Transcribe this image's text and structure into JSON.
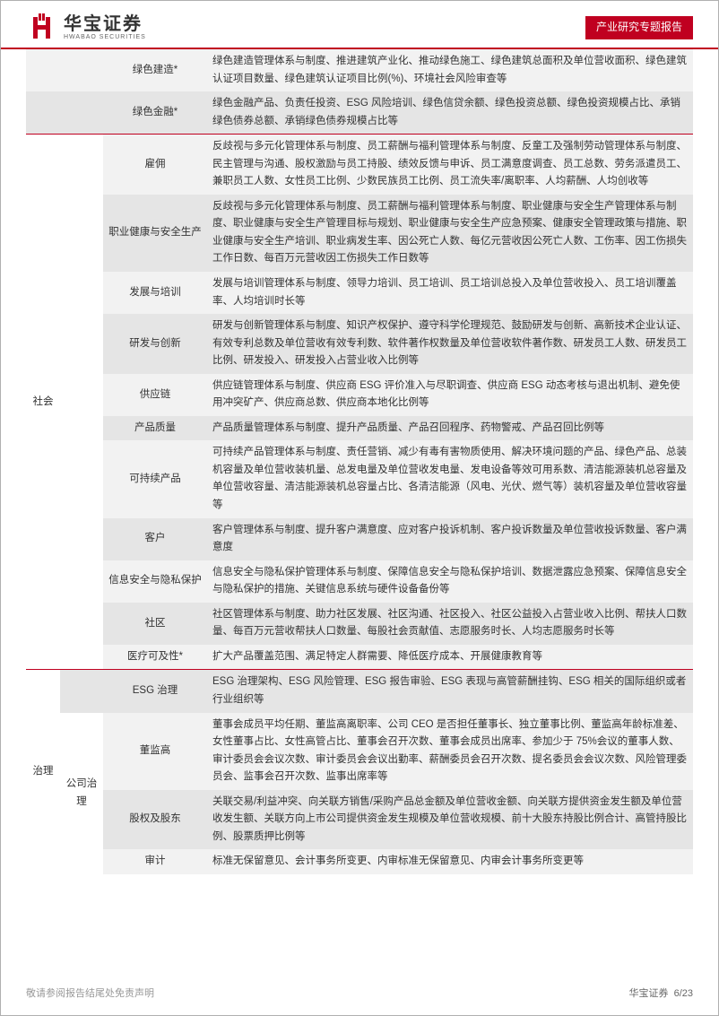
{
  "header": {
    "logo_cn": "华宝证券",
    "logo_en": "HWABAO SECURITIES",
    "badge": "产业研究专题报告"
  },
  "rows": [
    {
      "l1": "",
      "l2": "",
      "l3": "绿色建造*",
      "desc": "绿色建造管理体系与制度、推进建筑产业化、推动绿色施工、绿色建筑总面积及单位营收面积、绿色建筑认证项目数量、绿色建筑认证项目比例(%)、环境社会风险审查等",
      "band": "a",
      "sep": false,
      "l1span": 1,
      "l2span": 1
    },
    {
      "l1": "",
      "l2": "",
      "l3": "绿色金融*",
      "desc": "绿色金融产品、负责任投资、ESG 风险培训、绿色信贷余额、绿色投资总额、绿色投资规模占比、承销绿色债券总额、承销绿色债券规模占比等",
      "band": "b",
      "sep": false,
      "l1span": 1,
      "l2span": 1
    },
    {
      "l1": "社会",
      "l2": "",
      "l3": "雇佣",
      "desc": "反歧视与多元化管理体系与制度、员工薪酬与福利管理体系与制度、反童工及强制劳动管理体系与制度、民主管理与沟通、股权激励与员工持股、绩效反馈与申诉、员工满意度调查、员工总数、劳务派遣员工、兼职员工人数、女性员工比例、少数民族员工比例、员工流失率/离职率、人均薪酬、人均创收等",
      "band": "a",
      "sep": true,
      "l1span": 11,
      "l2span": 11
    },
    {
      "l1": "",
      "l2": "",
      "l3": "职业健康与安全生产",
      "desc": "反歧视与多元化管理体系与制度、员工薪酬与福利管理体系与制度、职业健康与安全生产管理体系与制度、职业健康与安全生产管理目标与规划、职业健康与安全生产应急预案、健康安全管理政策与措施、职业健康与安全生产培训、职业病发生率、因公死亡人数、每亿元营收因公死亡人数、工伤率、因工伤损失工作日数、每百万元营收因工伤损失工作日数等",
      "band": "b",
      "sep": false,
      "l1span": 0,
      "l2span": 0
    },
    {
      "l1": "",
      "l2": "",
      "l3": "发展与培训",
      "desc": "发展与培训管理体系与制度、领导力培训、员工培训、员工培训总投入及单位营收投入、员工培训覆盖率、人均培训时长等",
      "band": "a",
      "sep": false,
      "l1span": 0,
      "l2span": 0
    },
    {
      "l1": "",
      "l2": "",
      "l3": "研发与创新",
      "desc": "研发与创新管理体系与制度、知识产权保护、遵守科学伦理规范、鼓励研发与创新、高新技术企业认证、有效专利总数及单位营收有效专利数、软件著作权数量及单位营收软件著作数、研发员工人数、研发员工比例、研发投入、研发投入占营业收入比例等",
      "band": "b",
      "sep": false,
      "l1span": 0,
      "l2span": 0
    },
    {
      "l1": "",
      "l2": "",
      "l3": "供应链",
      "desc": "供应链管理体系与制度、供应商 ESG 评价准入与尽职调查、供应商 ESG 动态考核与退出机制、避免使用冲突矿产、供应商总数、供应商本地化比例等",
      "band": "a",
      "sep": false,
      "l1span": 0,
      "l2span": 0
    },
    {
      "l1": "",
      "l2": "",
      "l3": "产品质量",
      "desc": "产品质量管理体系与制度、提升产品质量、产品召回程序、药物警戒、产品召回比例等",
      "band": "b",
      "sep": false,
      "l1span": 0,
      "l2span": 0
    },
    {
      "l1": "",
      "l2": "",
      "l3": "可持续产品",
      "desc": "可持续产品管理体系与制度、责任营销、减少有毒有害物质使用、解决环境问题的产品、绿色产品、总装机容量及单位营收装机量、总发电量及单位营收发电量、发电设备等效可用系数、清洁能源装机总容量及单位营收容量、清洁能源装机总容量占比、各清洁能源（风电、光伏、燃气等）装机容量及单位营收容量等",
      "band": "a",
      "sep": false,
      "l1span": 0,
      "l2span": 0
    },
    {
      "l1": "",
      "l2": "",
      "l3": "客户",
      "desc": "客户管理体系与制度、提升客户满意度、应对客户投诉机制、客户投诉数量及单位营收投诉数量、客户满意度",
      "band": "b",
      "sep": false,
      "l1span": 0,
      "l2span": 0
    },
    {
      "l1": "",
      "l2": "",
      "l3": "信息安全与隐私保护",
      "desc": "信息安全与隐私保护管理体系与制度、保障信息安全与隐私保护培训、数据泄露应急预案、保障信息安全与隐私保护的措施、关键信息系统与硬件设备备份等",
      "band": "a",
      "sep": false,
      "l1span": 0,
      "l2span": 0
    },
    {
      "l1": "",
      "l2": "",
      "l3": "社区",
      "desc": "社区管理体系与制度、助力社区发展、社区沟通、社区投入、社区公益投入占营业收入比例、帮扶人口数量、每百万元营收帮扶人口数量、每股社会贡献值、志愿服务时长、人均志愿服务时长等",
      "band": "b",
      "sep": false,
      "l1span": 0,
      "l2span": 0
    },
    {
      "l1": "",
      "l2": "",
      "l3": "医疗可及性*",
      "desc": "扩大产品覆盖范围、满足特定人群需要、降低医疗成本、开展健康教育等",
      "band": "a",
      "sep": false,
      "l1span": 0,
      "l2span": 0
    },
    {
      "l1": "治理",
      "l2": "",
      "l3": "ESG 治理",
      "desc": "ESG 治理架构、ESG 风险管理、ESG 报告审验、ESG 表现与高管薪酬挂钩、ESG 相关的国际组织或者行业组织等",
      "band": "b",
      "sep": true,
      "l1span": 4,
      "l2span": 1
    },
    {
      "l1": "",
      "l2": "公司治理",
      "l3": "董监高",
      "desc": "董事会成员平均任期、董监高离职率、公司 CEO 是否担任董事长、独立董事比例、董监高年龄标准差、女性董事占比、女性高管占比、董事会召开次数、董事会成员出席率、参加少于 75%会议的董事人数、审计委员会会议次数、审计委员会会议出勤率、薪酬委员会召开次数、提名委员会会议次数、风险管理委员会、监事会召开次数、监事出席率等",
      "band": "a",
      "sep": false,
      "l1span": 0,
      "l2span": 3
    },
    {
      "l1": "",
      "l2": "",
      "l3": "股权及股东",
      "desc": "关联交易/利益冲突、向关联方销售/采购产品总金额及单位营收金额、向关联方提供资金发生额及单位营收发生额、关联方向上市公司提供资金发生规模及单位营收规模、前十大股东持股比例合计、高管持股比例、股票质押比例等",
      "band": "b",
      "sep": false,
      "l1span": 0,
      "l2span": 0
    },
    {
      "l1": "",
      "l2": "",
      "l3": "审计",
      "desc": "标准无保留意见、会计事务所变更、内审标准无保留意见、内审会计事务所变更等",
      "band": "a",
      "sep": false,
      "l1span": 0,
      "l2span": 0
    }
  ],
  "footer": {
    "left": "敬请参阅报告结尾处免责声明",
    "right_text": "华宝证券",
    "page": "6/23"
  },
  "colors": {
    "brand_red": "#c00020",
    "band_a": "#f2f2f2",
    "band_b": "#e5e5e5"
  }
}
